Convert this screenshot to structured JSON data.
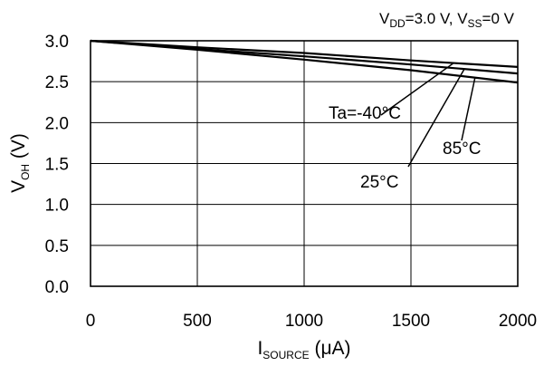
{
  "chart_data": {
    "type": "line",
    "title": "",
    "conditions": {
      "vdd_main": "V",
      "vdd_sub": "DD",
      "vdd_value": "=3.0 V, ",
      "vss_main": "V",
      "vss_sub": "SS",
      "vss_value": "=0 V"
    },
    "xlabel": {
      "main": "I",
      "sub": "SOURCE",
      "unit": " (μA)"
    },
    "ylabel": {
      "main": "V",
      "sub": "OH",
      "unit": " (V)"
    },
    "xlim": [
      0,
      2000
    ],
    "ylim": [
      0,
      3.0
    ],
    "xticks": [
      "0",
      "500",
      "1000",
      "1500",
      "2000"
    ],
    "yticks": [
      "0.0",
      "0.5",
      "1.0",
      "1.5",
      "2.0",
      "2.5",
      "3.0"
    ],
    "grid": true,
    "legend": "none",
    "series": [
      {
        "name": "Ta=-40°C",
        "x": [
          0,
          500,
          1000,
          1500,
          2000
        ],
        "y": [
          3.0,
          2.92,
          2.85,
          2.76,
          2.68
        ]
      },
      {
        "name": "25°C",
        "x": [
          0,
          500,
          1000,
          1500,
          2000
        ],
        "y": [
          3.0,
          2.9,
          2.81,
          2.71,
          2.6
        ]
      },
      {
        "name": "85°C",
        "x": [
          0,
          500,
          1000,
          1500,
          2000
        ],
        "y": [
          3.0,
          2.89,
          2.77,
          2.64,
          2.49
        ]
      }
    ],
    "annotations": [
      {
        "text": "Ta=-40°C",
        "series": 0,
        "at_x": 1700
      },
      {
        "text": "25°C",
        "series": 1,
        "at_x": 1750
      },
      {
        "text": "85°C",
        "series": 2,
        "at_x": 1800
      }
    ]
  }
}
